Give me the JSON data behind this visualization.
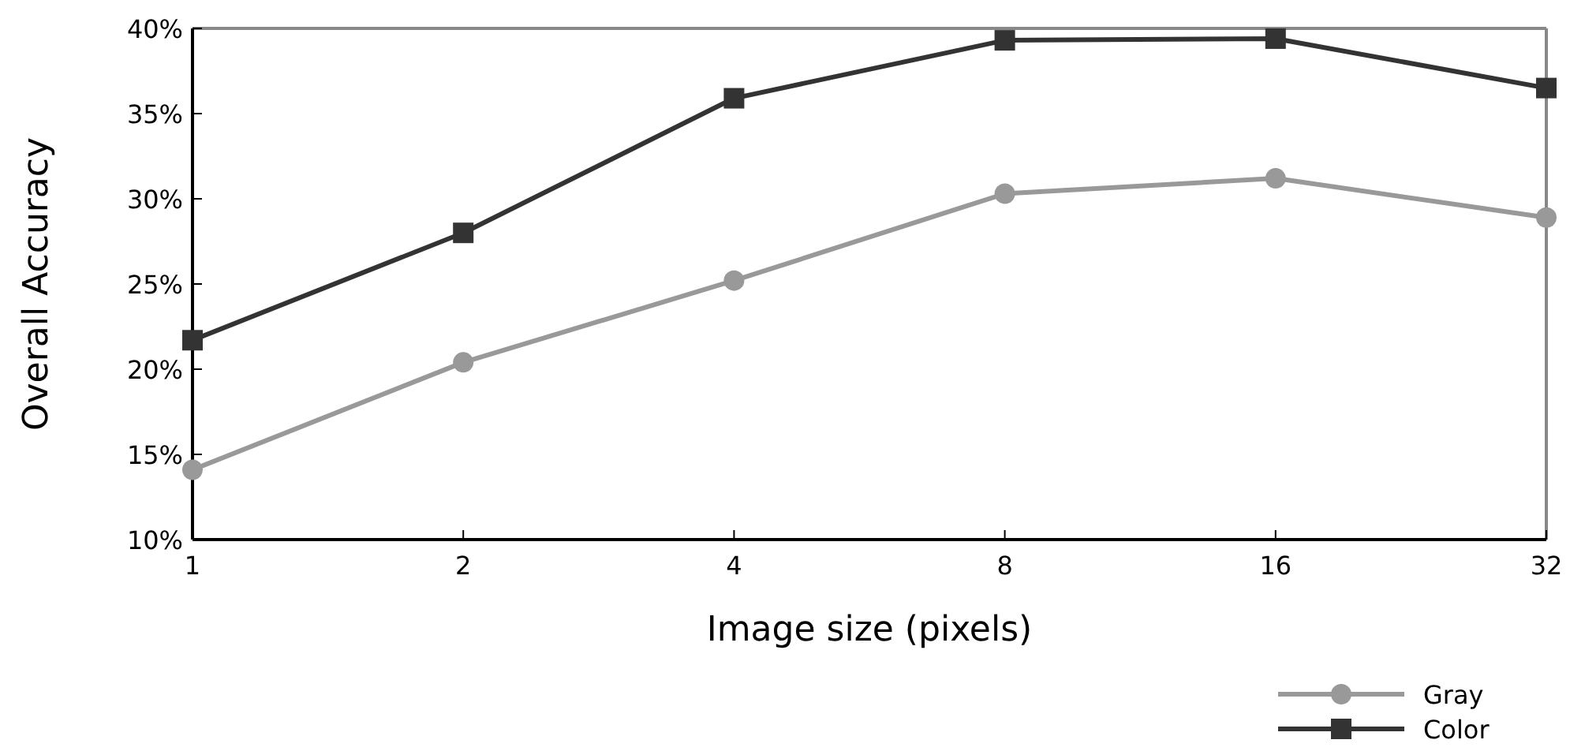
{
  "chart_data": {
    "type": "line",
    "xlabel": "Image size (pixels)",
    "ylabel": "Overall Accuracy",
    "x": [
      1,
      2,
      4,
      8,
      16,
      32
    ],
    "log": "x",
    "xlim": [
      1,
      32
    ],
    "xticks": [
      1,
      2,
      4,
      8,
      16,
      32
    ],
    "ylim": [
      10,
      40
    ],
    "yticks": [
      {
        "value": 10,
        "label": "10%"
      },
      {
        "value": 15,
        "label": "15%"
      },
      {
        "value": 20,
        "label": "20%"
      },
      {
        "value": 25,
        "label": "25%"
      },
      {
        "value": 30,
        "label": "30%"
      },
      {
        "value": 35,
        "label": "35%"
      },
      {
        "value": 40,
        "label": "40%"
      }
    ],
    "grid": false,
    "legend": "bottom right",
    "line_style": "solid",
    "series": [
      {
        "name": "Gray",
        "color": "#999999",
        "marker": "circle",
        "values": [
          14.1,
          20.4,
          25.2,
          30.3,
          31.2,
          28.9
        ]
      },
      {
        "name": "Color",
        "color": "#333333",
        "marker": "square",
        "values": [
          21.7,
          28.0,
          35.9,
          39.3,
          39.4,
          36.5
        ]
      }
    ]
  }
}
